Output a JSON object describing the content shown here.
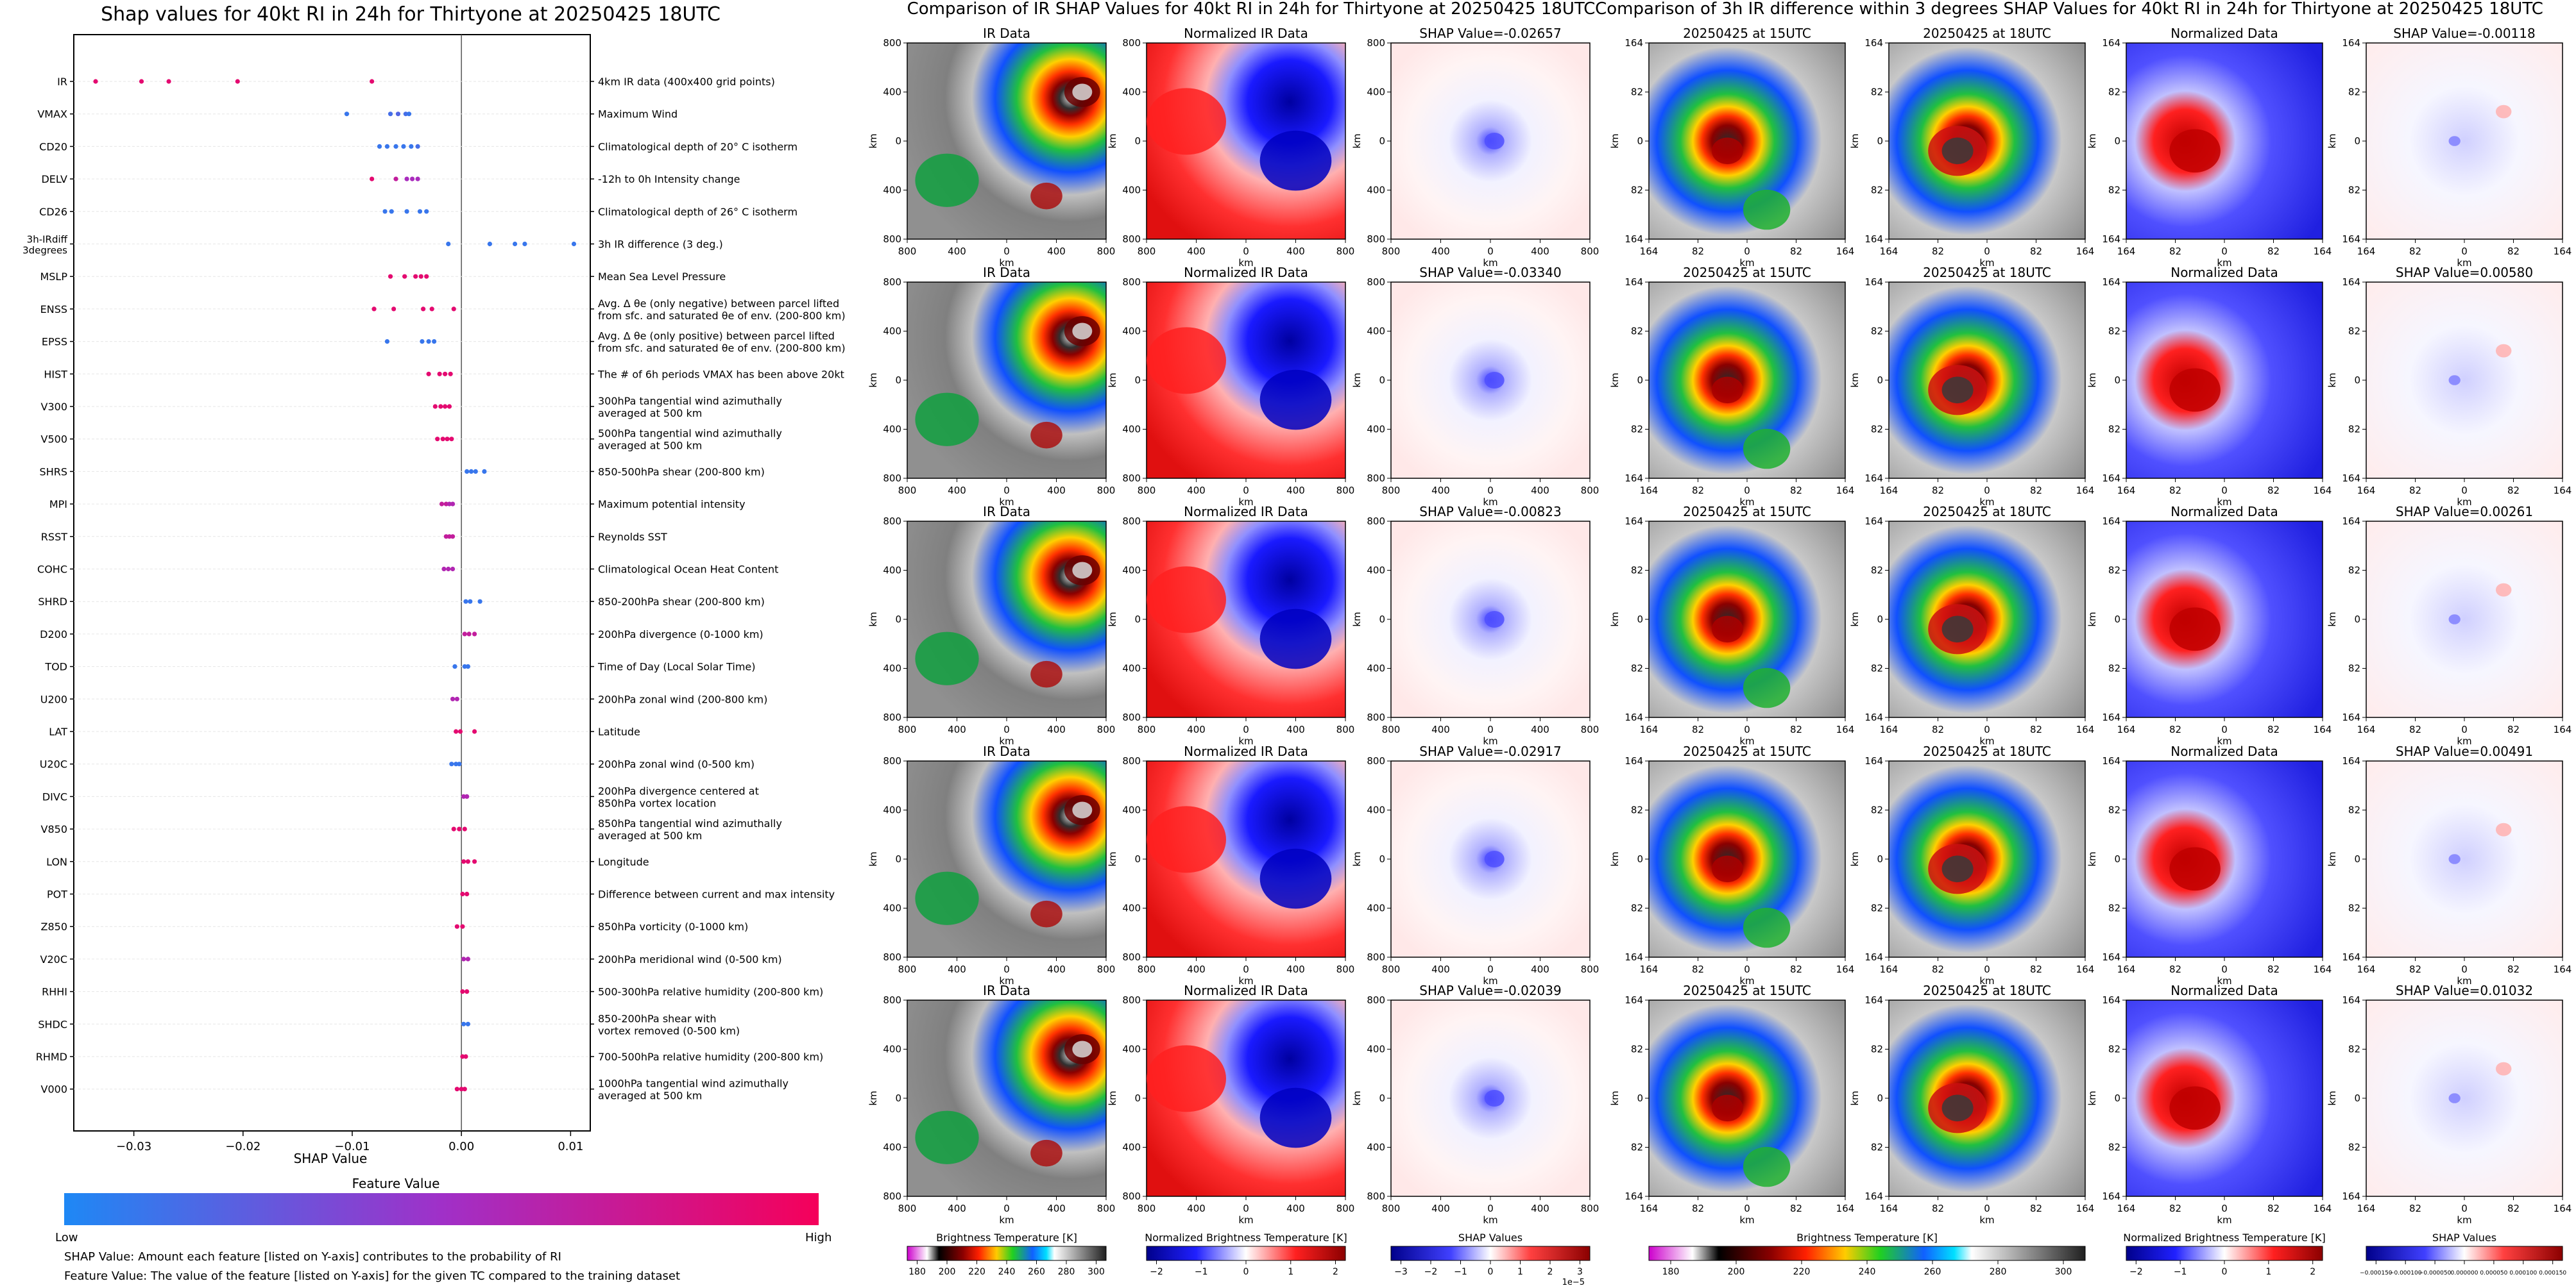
{
  "shap_panel": {
    "title": "Shap values for 40kt RI in 24h for Thirtyone at 20250425 18UTC",
    "xlabel": "SHAP Value",
    "colorbar_title": "Feature Value",
    "colorbar_low": "Low",
    "colorbar_high": "High",
    "footnote_1": "SHAP Value: Amount each feature [listed on Y-axis] contributes to the probability of RI",
    "footnote_2": "Feature Value: The value of the feature [listed on Y-axis] for the given TC compared to the training dataset"
  },
  "ir_panel": {
    "title": "Comparison of IR SHAP Values for 40kt RI in 24h for Thirtyone at 20250425 18UTC",
    "col_titles": [
      "IR Data",
      "Normalized IR Data"
    ],
    "shap_titles": [
      "SHAP Value=-0.02657",
      "SHAP Value=-0.03340",
      "SHAP Value=-0.00823",
      "SHAP Value=-0.02917",
      "SHAP Value=-0.02039"
    ],
    "ticks": [
      "800",
      "400",
      "0",
      "400",
      "800"
    ],
    "km": "km",
    "cb_labels": [
      "Brightness Temperature [K]",
      "Normalized Brightness Temperature [K]",
      "SHAP Values"
    ],
    "cb1_ticks": [
      "180",
      "200",
      "220",
      "240",
      "260",
      "280",
      "300"
    ],
    "cb2_ticks": [
      "−2",
      "−1",
      "0",
      "1",
      "2"
    ],
    "cb3_ticks": [
      "−3",
      "−2",
      "−1",
      "0",
      "1",
      "2",
      "3"
    ],
    "cb3_exp": "1e−5"
  },
  "diff_panel": {
    "title": "Comparison of 3h IR difference within 3 degrees SHAP Values for 40kt RI in 24h for Thirtyone at 20250425 18UTC",
    "col_titles": [
      "20250425 at 15UTC",
      "20250425 at 18UTC",
      "Normalized Data"
    ],
    "shap_titles": [
      "SHAP Value=-0.00118",
      "SHAP Value=0.00580",
      "SHAP Value=0.00261",
      "SHAP Value=0.00491",
      "SHAP Value=0.01032"
    ],
    "ticks": [
      "164",
      "82",
      "0",
      "82",
      "164"
    ],
    "km": "km",
    "cb_labels": [
      "Brightness Temperature [K]",
      "Normalized Brightness Temperature [K]",
      "SHAP Values"
    ],
    "cb1_ticks": [
      "180",
      "200",
      "220",
      "240",
      "260",
      "280",
      "300"
    ],
    "cb2_ticks": [
      "−2",
      "−1",
      "0",
      "1",
      "2"
    ],
    "cb3_ticks": [
      "−0.000150",
      "−0.000100",
      "−0.000050",
      "0.000000",
      "0.000050",
      "0.000100",
      "0.000150"
    ]
  },
  "chart_data": {
    "type": "scatter",
    "title": "Shap values for 40kt RI in 24h for Thirtyone at 20250425 18UTC",
    "xlabel": "SHAP Value",
    "xlim": [
      -0.0355,
      0.0118
    ],
    "x_ticks": [
      -0.03,
      -0.02,
      -0.01,
      0.0,
      0.01
    ],
    "x_tick_labels": [
      "−0.03",
      "−0.02",
      "−0.01",
      "0.00",
      "0.01"
    ],
    "legend": "colorbar below axis: Low to High feature value",
    "color_low": "#1e88f5",
    "color_high": "#f5005a",
    "features": [
      {
        "code": "IR",
        "desc": [
          "4km IR data (400x400 grid points)"
        ],
        "points": [
          [
            -0.0335,
            0.9
          ],
          [
            -0.0293,
            0.9
          ],
          [
            -0.0268,
            0.9
          ],
          [
            -0.0205,
            0.9
          ],
          [
            -0.0082,
            0.9
          ]
        ]
      },
      {
        "code": "VMAX",
        "desc": [
          "Maximum Wind"
        ],
        "points": [
          [
            -0.0105,
            0.1
          ],
          [
            -0.0065,
            0.15
          ],
          [
            -0.0058,
            0.2
          ],
          [
            -0.0051,
            0.15
          ],
          [
            -0.0048,
            0.1
          ]
        ]
      },
      {
        "code": "CD20",
        "desc": [
          "Climatological depth of 20° C isotherm"
        ],
        "points": [
          [
            -0.0075,
            0.1
          ],
          [
            -0.0068,
            0.1
          ],
          [
            -0.006,
            0.1
          ],
          [
            -0.0053,
            0.1
          ],
          [
            -0.0046,
            0.1
          ],
          [
            -0.004,
            0.15
          ]
        ]
      },
      {
        "code": "DELV",
        "desc": [
          "-12h to 0h Intensity change"
        ],
        "points": [
          [
            -0.0082,
            0.9
          ],
          [
            -0.006,
            0.7
          ],
          [
            -0.005,
            0.55
          ],
          [
            -0.0045,
            0.55
          ],
          [
            -0.004,
            0.55
          ]
        ]
      },
      {
        "code": "CD26",
        "desc": [
          "Climatological depth of 26° C isotherm"
        ],
        "points": [
          [
            -0.007,
            0.1
          ],
          [
            -0.0064,
            0.1
          ],
          [
            -0.005,
            0.1
          ],
          [
            -0.0038,
            0.1
          ],
          [
            -0.0032,
            0.1
          ]
        ]
      },
      {
        "code": "3h-IRdiff 3degrees",
        "desc": [
          "3h IR difference (3 deg.)"
        ],
        "points": [
          [
            -0.0012,
            0.1
          ],
          [
            0.0026,
            0.1
          ],
          [
            0.0049,
            0.1
          ],
          [
            0.0058,
            0.1
          ],
          [
            0.0103,
            0.1
          ]
        ]
      },
      {
        "code": "MSLP",
        "desc": [
          "Mean Sea Level Pressure"
        ],
        "points": [
          [
            -0.0065,
            0.9
          ],
          [
            -0.0052,
            0.9
          ],
          [
            -0.0042,
            0.9
          ],
          [
            -0.0037,
            0.9
          ],
          [
            -0.0032,
            0.9
          ]
        ]
      },
      {
        "code": "ENSS",
        "desc": [
          "Avg. Δ θe (only negative) between parcel lifted",
          "from sfc. and saturated θe of env. (200-800 km)"
        ],
        "points": [
          [
            -0.008,
            0.9
          ],
          [
            -0.0062,
            0.9
          ],
          [
            -0.0035,
            0.9
          ],
          [
            -0.0027,
            0.9
          ],
          [
            -0.0007,
            0.9
          ]
        ]
      },
      {
        "code": "EPSS",
        "desc": [
          "Avg. Δ θe (only positive) between parcel lifted",
          "from sfc. and saturated θe of env. (200-800 km)"
        ],
        "points": [
          [
            -0.0068,
            0.1
          ],
          [
            -0.0036,
            0.1
          ],
          [
            -0.003,
            0.1
          ],
          [
            -0.0025,
            0.1
          ]
        ]
      },
      {
        "code": "HIST",
        "desc": [
          "The # of 6h periods VMAX has been above 20kt"
        ],
        "points": [
          [
            -0.003,
            0.9
          ],
          [
            -0.002,
            0.9
          ],
          [
            -0.0015,
            0.9
          ],
          [
            -0.001,
            0.9
          ]
        ]
      },
      {
        "code": "V300",
        "desc": [
          "300hPa tangential wind azimuthally",
          "averaged at 500 km"
        ],
        "points": [
          [
            -0.0024,
            0.9
          ],
          [
            -0.0019,
            0.9
          ],
          [
            -0.0015,
            0.9
          ],
          [
            -0.0011,
            0.9
          ]
        ]
      },
      {
        "code": "V500",
        "desc": [
          "500hPa tangential wind azimuthally",
          "averaged at 500 km"
        ],
        "points": [
          [
            -0.0022,
            0.9
          ],
          [
            -0.0017,
            0.9
          ],
          [
            -0.0013,
            0.9
          ],
          [
            -0.0009,
            0.9
          ]
        ]
      },
      {
        "code": "SHRS",
        "desc": [
          "850-500hPa shear (200-800 km)"
        ],
        "points": [
          [
            0.0005,
            0.1
          ],
          [
            0.0009,
            0.1
          ],
          [
            0.0013,
            0.1
          ],
          [
            0.0021,
            0.1
          ]
        ]
      },
      {
        "code": "MPI",
        "desc": [
          "Maximum potential intensity"
        ],
        "points": [
          [
            -0.0018,
            0.7
          ],
          [
            -0.0014,
            0.7
          ],
          [
            -0.0011,
            0.6
          ],
          [
            -0.0008,
            0.6
          ]
        ]
      },
      {
        "code": "RSST",
        "desc": [
          "Reynolds SST"
        ],
        "points": [
          [
            -0.0014,
            0.7
          ],
          [
            -0.0011,
            0.7
          ],
          [
            -0.0008,
            0.7
          ]
        ]
      },
      {
        "code": "COHC",
        "desc": [
          "Climatological Ocean Heat Content"
        ],
        "points": [
          [
            -0.0016,
            0.6
          ],
          [
            -0.0012,
            0.6
          ],
          [
            -0.0008,
            0.6
          ]
        ]
      },
      {
        "code": "SHRD",
        "desc": [
          "850-200hPa shear (200-800 km)"
        ],
        "points": [
          [
            0.0004,
            0.1
          ],
          [
            0.0008,
            0.1
          ],
          [
            0.0017,
            0.1
          ]
        ]
      },
      {
        "code": "D200",
        "desc": [
          "200hPa divergence (0-1000 km)"
        ],
        "points": [
          [
            0.0003,
            0.7
          ],
          [
            0.0007,
            0.7
          ],
          [
            0.0012,
            0.7
          ]
        ]
      },
      {
        "code": "TOD",
        "desc": [
          "Time of Day (Local Solar Time)"
        ],
        "points": [
          [
            -0.0006,
            0.1
          ],
          [
            0.0003,
            0.1
          ],
          [
            0.0006,
            0.1
          ]
        ]
      },
      {
        "code": "U200",
        "desc": [
          "200hPa zonal wind (200-800 km)"
        ],
        "points": [
          [
            -0.0008,
            0.6
          ],
          [
            -0.0004,
            0.6
          ]
        ]
      },
      {
        "code": "LAT",
        "desc": [
          "Latitude"
        ],
        "points": [
          [
            -0.0005,
            0.9
          ],
          [
            -0.0001,
            0.9
          ],
          [
            0.0012,
            0.9
          ]
        ]
      },
      {
        "code": "U20C",
        "desc": [
          "200hPa zonal wind (0-500 km)"
        ],
        "points": [
          [
            -0.0009,
            0.1
          ],
          [
            -0.0005,
            0.1
          ],
          [
            -0.0002,
            0.1
          ]
        ]
      },
      {
        "code": "DIVC",
        "desc": [
          "200hPa divergence centered at",
          "850hPa vortex location"
        ],
        "points": [
          [
            0.0002,
            0.6
          ],
          [
            0.0005,
            0.6
          ]
        ]
      },
      {
        "code": "V850",
        "desc": [
          "850hPa tangential wind azimuthally",
          "averaged at 500 km"
        ],
        "points": [
          [
            -0.0007,
            0.9
          ],
          [
            -0.0002,
            0.9
          ],
          [
            0.0003,
            0.9
          ]
        ]
      },
      {
        "code": "LON",
        "desc": [
          "Longitude"
        ],
        "points": [
          [
            0.0002,
            0.9
          ],
          [
            0.0006,
            0.9
          ],
          [
            0.0012,
            0.9
          ]
        ]
      },
      {
        "code": "POT",
        "desc": [
          "Difference between current and max intensity"
        ],
        "points": [
          [
            0.0001,
            0.9
          ],
          [
            0.0005,
            0.9
          ]
        ]
      },
      {
        "code": "Z850",
        "desc": [
          "850hPa vorticity (0-1000 km)"
        ],
        "points": [
          [
            -0.0004,
            0.9
          ],
          [
            0.0001,
            0.9
          ]
        ]
      },
      {
        "code": "V20C",
        "desc": [
          "200hPa meridional wind (0-500 km)"
        ],
        "points": [
          [
            0.0002,
            0.6
          ],
          [
            0.0006,
            0.6
          ]
        ]
      },
      {
        "code": "RHHI",
        "desc": [
          "500-300hPa relative humidity (200-800 km)"
        ],
        "points": [
          [
            0.0001,
            0.9
          ],
          [
            0.0005,
            0.9
          ]
        ]
      },
      {
        "code": "SHDC",
        "desc": [
          "850-200hPa shear with",
          "vortex removed (0-500 km)"
        ],
        "points": [
          [
            0.0002,
            0.1
          ],
          [
            0.0006,
            0.1
          ]
        ]
      },
      {
        "code": "RHMD",
        "desc": [
          "700-500hPa relative humidity (200-800 km)"
        ],
        "points": [
          [
            0.0001,
            0.9
          ],
          [
            0.0004,
            0.9
          ]
        ]
      },
      {
        "code": "V000",
        "desc": [
          "1000hPa tangential wind azimuthally",
          "averaged at 500 km"
        ],
        "points": [
          [
            -0.0004,
            0.9
          ],
          [
            0.0,
            0.9
          ],
          [
            0.0003,
            0.9
          ]
        ]
      }
    ]
  }
}
